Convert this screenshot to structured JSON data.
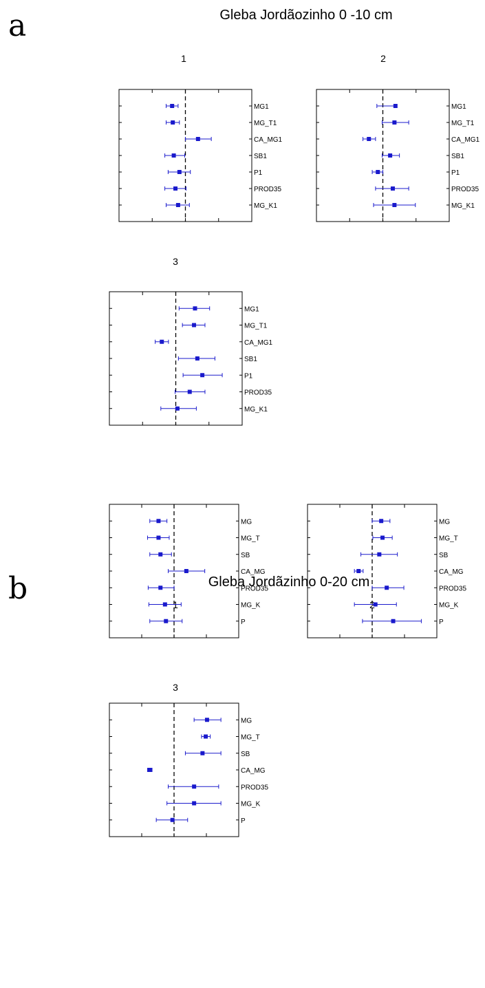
{
  "panels": [
    {
      "letter": "a",
      "title": "Gleba Jordãozinho 0 -10 cm"
    },
    {
      "letter": "b",
      "title": "Gleba Jordãzinho 0-20 cm"
    }
  ],
  "style": {
    "marker_color": "#1a1acc",
    "zero_line_color": "#000000"
  },
  "chart_data": [
    {
      "type": "forest",
      "panel": "a",
      "subplot": "1",
      "title": "1",
      "categories": [
        "MG1",
        "MG_T1",
        "CA_MG1",
        "SB1",
        "P1",
        "PROD35",
        "MG_K1"
      ],
      "estimate": [
        -0.4,
        -0.38,
        0.38,
        -0.35,
        -0.18,
        -0.3,
        -0.22
      ],
      "lower": [
        -0.58,
        -0.58,
        0.0,
        -0.62,
        -0.52,
        -0.62,
        -0.58
      ],
      "upper": [
        -0.22,
        -0.18,
        0.78,
        -0.02,
        0.15,
        0.02,
        0.12
      ],
      "xlim": [
        -2,
        2
      ],
      "reference": 0
    },
    {
      "type": "forest",
      "panel": "a",
      "subplot": "2",
      "title": "2",
      "categories": [
        "MG1",
        "MG_T1",
        "CA_MG1",
        "SB1",
        "P1",
        "PROD35",
        "MG_K1"
      ],
      "estimate": [
        0.38,
        0.35,
        -0.42,
        0.22,
        -0.15,
        0.3,
        0.35
      ],
      "lower": [
        -0.18,
        -0.02,
        -0.6,
        -0.02,
        -0.32,
        -0.22,
        -0.28
      ],
      "upper": [
        0.38,
        0.78,
        -0.22,
        0.5,
        0.0,
        0.78,
        0.98
      ],
      "xlim": [
        -2,
        2
      ],
      "reference": 0
    },
    {
      "type": "forest",
      "panel": "a",
      "subplot": "3",
      "title": "3",
      "categories": [
        "MG1",
        "MG_T1",
        "CA_MG1",
        "SB1",
        "P1",
        "PROD35",
        "MG_K1"
      ],
      "estimate": [
        0.58,
        0.55,
        -0.42,
        0.65,
        0.8,
        0.42,
        0.05
      ],
      "lower": [
        0.1,
        0.2,
        -0.62,
        0.08,
        0.22,
        -0.02,
        -0.45
      ],
      "upper": [
        1.02,
        0.88,
        -0.22,
        1.18,
        1.4,
        0.88,
        0.62
      ],
      "xlim": [
        -2,
        2
      ],
      "reference": 0
    },
    {
      "type": "forest",
      "panel": "b",
      "subplot": "1",
      "title": "1",
      "categories": [
        "MG",
        "MG_T",
        "SB",
        "CA_MG",
        "PROD35",
        "MG_K",
        "P"
      ],
      "estimate": [
        -0.48,
        -0.48,
        -0.42,
        0.38,
        -0.42,
        -0.28,
        -0.25
      ],
      "lower": [
        -0.75,
        -0.82,
        -0.75,
        -0.18,
        -0.8,
        -0.78,
        -0.75
      ],
      "upper": [
        -0.22,
        -0.15,
        -0.08,
        0.95,
        0.0,
        0.22,
        0.25
      ],
      "xlim": [
        -2,
        2
      ],
      "reference": 0
    },
    {
      "type": "forest",
      "panel": "b",
      "subplot": "2",
      "title": "2",
      "categories": [
        "MG",
        "MG_T",
        "SB",
        "CA_MG",
        "PROD35",
        "MG_K",
        "P"
      ],
      "estimate": [
        0.28,
        0.32,
        0.22,
        -0.42,
        0.45,
        0.1,
        0.65
      ],
      "lower": [
        0.0,
        0.02,
        -0.35,
        -0.55,
        0.0,
        -0.55,
        -0.3
      ],
      "upper": [
        0.55,
        0.62,
        0.78,
        -0.28,
        0.98,
        0.75,
        1.52
      ],
      "xlim": [
        -2,
        2
      ],
      "reference": 0
    },
    {
      "type": "forest",
      "panel": "b",
      "subplot": "3",
      "title": "3",
      "categories": [
        "MG",
        "MG_T",
        "SB",
        "CA_MG",
        "PROD35",
        "MG_K",
        "P"
      ],
      "estimate": [
        1.02,
        0.98,
        0.88,
        -0.75,
        0.62,
        0.62,
        -0.05
      ],
      "lower": [
        0.62,
        0.85,
        0.35,
        -0.82,
        -0.18,
        -0.22,
        -0.55
      ],
      "upper": [
        1.45,
        1.12,
        1.45,
        -0.68,
        1.38,
        1.45,
        0.42
      ],
      "xlim": [
        -2,
        2
      ],
      "reference": 0
    }
  ]
}
